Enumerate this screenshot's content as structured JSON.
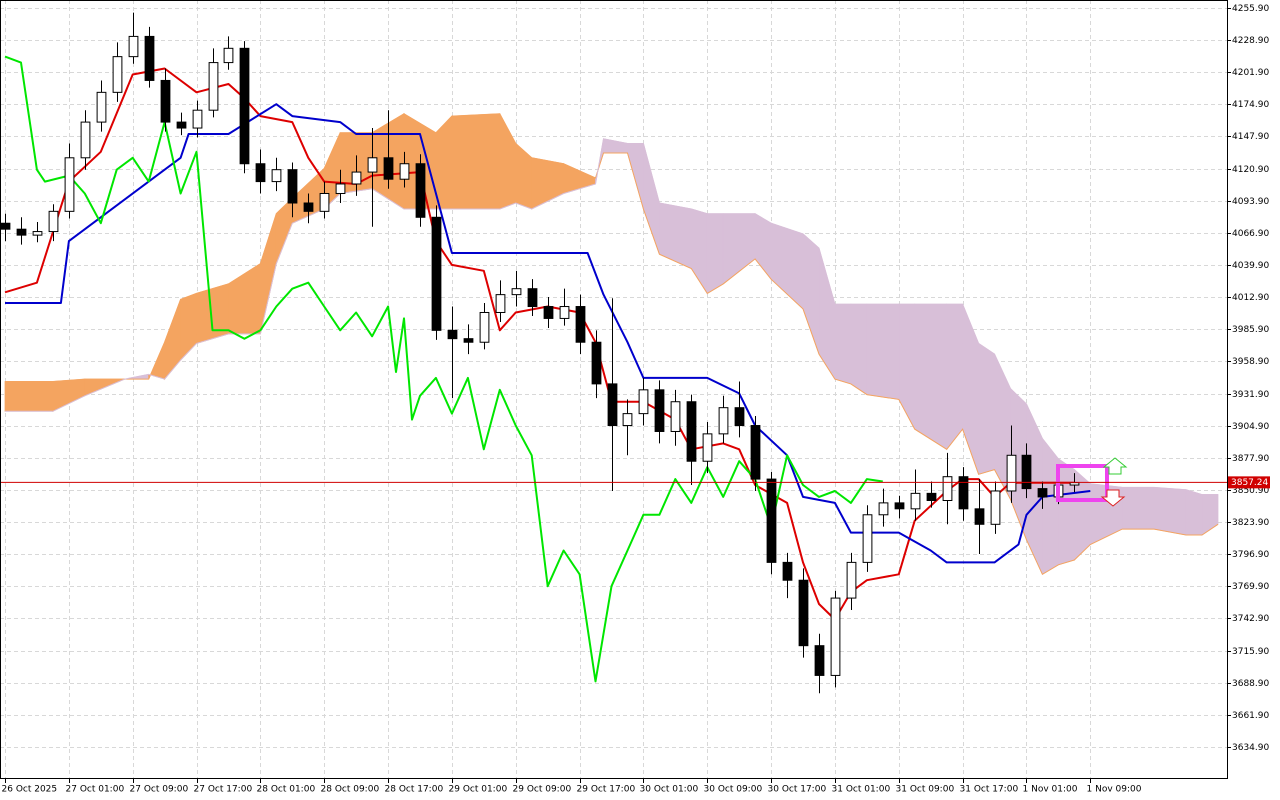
{
  "chart_data": {
    "type": "candlestick",
    "xlim": [
      -0.63,
      153.13
    ],
    "ylim": [
      3608.8,
      4262.6
    ],
    "grid": true,
    "yticks": [
      {
        "value": 4255.9,
        "label": "4255.90"
      },
      {
        "value": 4228.9,
        "label": "4228.90"
      },
      {
        "value": 4201.9,
        "label": "4201.90"
      },
      {
        "value": 4174.9,
        "label": "4174.90"
      },
      {
        "value": 4147.9,
        "label": "4147.90"
      },
      {
        "value": 4120.9,
        "label": "4120.90"
      },
      {
        "value": 4093.9,
        "label": "4093.90"
      },
      {
        "value": 4066.9,
        "label": "4066.90"
      },
      {
        "value": 4039.9,
        "label": "4039.90"
      },
      {
        "value": 4012.9,
        "label": "4012.90"
      },
      {
        "value": 3985.9,
        "label": "3985.90"
      },
      {
        "value": 3958.9,
        "label": "3958.90"
      },
      {
        "value": 3931.9,
        "label": "3931.90"
      },
      {
        "value": 3904.9,
        "label": "3904.90"
      },
      {
        "value": 3877.9,
        "label": "3877.90"
      },
      {
        "value": 3850.9,
        "label": "3850.90"
      },
      {
        "value": 3823.9,
        "label": "3823.90"
      },
      {
        "value": 3796.9,
        "label": "3796.90"
      },
      {
        "value": 3769.9,
        "label": "3769.90"
      },
      {
        "value": 3742.9,
        "label": "3742.90"
      },
      {
        "value": 3715.9,
        "label": "3715.90"
      },
      {
        "value": 3688.9,
        "label": "3688.90"
      },
      {
        "value": 3661.9,
        "label": "3661.90"
      },
      {
        "value": 3634.9,
        "label": "3634.90"
      }
    ],
    "xticks": [
      {
        "value": 0,
        "label": "26 Oct 2025"
      },
      {
        "value": 8,
        "label": "27 Oct 01:00"
      },
      {
        "value": 16,
        "label": "27 Oct 09:00"
      },
      {
        "value": 24,
        "label": "27 Oct 17:00"
      },
      {
        "value": 32,
        "label": "28 Oct 01:00"
      },
      {
        "value": 40,
        "label": "28 Oct 09:00"
      },
      {
        "value": 48,
        "label": "28 Oct 17:00"
      },
      {
        "value": 56,
        "label": "29 Oct 01:00"
      },
      {
        "value": 64,
        "label": "29 Oct 09:00"
      },
      {
        "value": 72,
        "label": "29 Oct 17:00"
      },
      {
        "value": 80,
        "label": "30 Oct 01:00"
      },
      {
        "value": 88,
        "label": "30 Oct 09:00"
      },
      {
        "value": 96,
        "label": "30 Oct 17:00"
      },
      {
        "value": 104,
        "label": "31 Oct 01:00"
      },
      {
        "value": 112,
        "label": "31 Oct 09:00"
      },
      {
        "value": 120,
        "label": "31 Oct 17:00"
      },
      {
        "value": 128,
        "label": "1 Nov 01:00"
      },
      {
        "value": 136,
        "label": "1 Nov 09:00"
      }
    ],
    "candles": {
      "x": [
        0,
        2,
        4,
        6,
        8,
        10,
        12,
        14,
        16,
        18,
        20,
        22,
        24,
        26,
        28,
        30,
        32,
        34,
        36,
        38,
        40,
        42,
        44,
        46,
        48,
        50,
        52,
        54,
        56,
        58,
        60,
        62,
        64,
        66,
        68,
        70,
        72,
        74,
        76,
        78,
        80,
        82,
        84,
        86,
        88,
        90,
        92,
        94,
        96,
        98,
        100,
        102,
        104,
        106,
        108,
        110,
        112,
        114,
        116,
        118,
        120,
        122,
        124,
        126,
        128,
        130,
        132,
        134
      ],
      "open": [
        4075,
        4070,
        4065,
        4068,
        4085,
        4130,
        4160,
        4185,
        4215,
        4232,
        4195,
        4160,
        4155,
        4170,
        4210,
        4222,
        4125,
        4110,
        4120,
        4092,
        4085,
        4100,
        4108,
        4118,
        4130,
        4112,
        4125,
        4080,
        3985,
        3978,
        3975,
        4000,
        4015,
        4020,
        4005,
        3995,
        4005,
        3975,
        3940,
        3905,
        3915,
        3935,
        3900,
        3925,
        3875,
        3898,
        3920,
        3905,
        3860,
        3790,
        3775,
        3720,
        3695,
        3760,
        3790,
        3830,
        3840,
        3835,
        3848,
        3842,
        3862,
        3835,
        3822,
        3850,
        3880,
        3852,
        3845,
        3855
      ],
      "high": [
        4083,
        4080,
        4076,
        4091,
        4142,
        4170,
        4195,
        4227,
        4252,
        4240,
        4205,
        4168,
        4178,
        4222,
        4232,
        4228,
        4137,
        4130,
        4126,
        4100,
        4110,
        4120,
        4132,
        4155,
        4170,
        4135,
        4133,
        4090,
        4005,
        3990,
        4008,
        4027,
        4035,
        4028,
        4013,
        4020,
        4015,
        3985,
        4012,
        3927,
        3945,
        3943,
        3935,
        3931,
        3908,
        3930,
        3942,
        3913,
        3866,
        3798,
        3785,
        3730,
        3766,
        3798,
        3838,
        3852,
        3846,
        3868,
        3858,
        3882,
        3870,
        3860,
        3858,
        3905,
        3890,
        3858,
        3865,
        3865
      ],
      "low": [
        4060,
        4057,
        4059,
        4060,
        4079,
        4120,
        4152,
        4177,
        4209,
        4189,
        4152,
        4149,
        4147,
        4164,
        4204,
        4117,
        4100,
        4102,
        4080,
        4075,
        4079,
        4092,
        4098,
        4072,
        4104,
        4105,
        4072,
        3977,
        3928,
        3965,
        3969,
        3992,
        4005,
        3997,
        3987,
        3989,
        3965,
        3928,
        3850,
        3880,
        3905,
        3890,
        3888,
        3855,
        3865,
        3890,
        3895,
        3850,
        3780,
        3760,
        3710,
        3680,
        3685,
        3750,
        3782,
        3820,
        3827,
        3825,
        3836,
        3822,
        3825,
        3797,
        3814,
        3840,
        3844,
        3835,
        3839,
        3849
      ],
      "close": [
        4070,
        4065,
        4068,
        4085,
        4130,
        4160,
        4185,
        4215,
        4232,
        4195,
        4160,
        4155,
        4170,
        4210,
        4222,
        4125,
        4110,
        4120,
        4092,
        4085,
        4100,
        4108,
        4118,
        4130,
        4112,
        4125,
        4080,
        3985,
        3978,
        3975,
        4000,
        4015,
        4020,
        4005,
        3995,
        4005,
        3975,
        3940,
        3905,
        3915,
        3935,
        3900,
        3925,
        3875,
        3898,
        3920,
        3905,
        3860,
        3790,
        3775,
        3720,
        3695,
        3760,
        3790,
        3830,
        3840,
        3835,
        3848,
        3842,
        3862,
        3835,
        3822,
        3850,
        3880,
        3852,
        3845,
        3855,
        3857
      ],
      "up_color": "#ffffff",
      "down_color": "#000000"
    },
    "cloud": {
      "x": [
        0,
        6,
        10,
        15,
        18,
        20,
        22,
        24,
        28,
        32,
        34,
        36,
        40,
        42,
        46,
        50,
        54,
        56,
        62,
        64,
        66,
        70,
        74,
        75,
        78,
        80,
        82,
        86,
        88,
        90,
        94,
        96,
        100,
        102,
        104,
        106,
        108,
        112,
        114,
        118,
        120,
        122,
        124,
        126,
        128,
        130,
        132,
        134,
        136,
        140,
        144,
        148,
        150,
        152
      ],
      "span_a": [
        3942,
        3942,
        3944,
        3944,
        3944,
        3975,
        4011,
        4016,
        4024,
        4041,
        4083,
        4096,
        4121,
        4151,
        4151,
        4167,
        4151,
        4165,
        4167,
        4142,
        4130,
        4125,
        4113,
        4134,
        4134,
        4087,
        4049,
        4037,
        4016,
        4024,
        4045,
        4028,
        4003,
        3965,
        3944,
        3940,
        3931,
        3927,
        3902,
        3885,
        3902,
        3864,
        3868,
        3843,
        3809,
        3780,
        3788,
        3792,
        3805,
        3818,
        3818,
        3813,
        3813,
        3822
      ],
      "span_b": [
        3917,
        3917,
        3930,
        3944,
        3948,
        3944,
        3960,
        3974,
        3982,
        3982,
        4041,
        4075,
        4087,
        4100,
        4104,
        4087,
        4087,
        4087,
        4087,
        4092,
        4087,
        4100,
        4108,
        4146,
        4142,
        4142,
        4092,
        4087,
        4083,
        4083,
        4083,
        4075,
        4066,
        4054,
        4007,
        4007,
        4007,
        4007,
        4007,
        4007,
        4007,
        3974,
        3965,
        3936,
        3923,
        3894,
        3877,
        3868,
        3856,
        3853,
        3853,
        3851,
        3847,
        3847
      ],
      "up_color": "#f4a460",
      "down_color": "#d8bfd8"
    },
    "lines": [
      {
        "color": "#dd0000",
        "x": [
          0,
          4,
          8,
          12,
          16,
          20,
          24,
          28,
          30,
          32,
          36,
          38,
          40,
          44,
          46,
          52,
          54,
          56,
          60,
          62,
          64,
          68,
          72,
          74,
          76,
          80,
          84,
          86,
          90,
          92,
          94,
          98,
          100,
          102,
          104,
          106,
          108,
          112,
          114,
          118,
          120,
          122,
          124,
          126,
          134
        ],
        "values": [
          4017,
          4025,
          4110,
          4135,
          4200,
          4205,
          4185,
          4192,
          4180,
          4165,
          4160,
          4130,
          4110,
          4108,
          4115,
          4118,
          4060,
          4040,
          4035,
          3985,
          4000,
          4005,
          4000,
          3975,
          3925,
          3925,
          3910,
          3885,
          3890,
          3885,
          3855,
          3840,
          3790,
          3755,
          3742,
          3765,
          3775,
          3780,
          3825,
          3850,
          3860,
          3860,
          3845,
          3857,
          3857
        ]
      },
      {
        "color": "#0000cc",
        "x": [
          0,
          7,
          8,
          14,
          20,
          22,
          23,
          28,
          34,
          36,
          42,
          44,
          52,
          56,
          73,
          75,
          78,
          80,
          88,
          92,
          94,
          98,
          100,
          104,
          106,
          112,
          116,
          118,
          124,
          127,
          128,
          130,
          136
        ],
        "values": [
          4008,
          4008,
          4060,
          4090,
          4120,
          4130,
          4150,
          4150,
          4175,
          4165,
          4160,
          4150,
          4150,
          4050,
          4050,
          4015,
          3975,
          3945,
          3945,
          3932,
          3905,
          3880,
          3845,
          3840,
          3815,
          3815,
          3800,
          3790,
          3790,
          3805,
          3830,
          3845,
          3850
        ]
      },
      {
        "color": "#00e600",
        "x": [
          0,
          2,
          4,
          5,
          8,
          10,
          12,
          14,
          16,
          18,
          20,
          22,
          24,
          26,
          28,
          30,
          32,
          34,
          36,
          38,
          40,
          42,
          44,
          46,
          48,
          49,
          50,
          51,
          52,
          54,
          56,
          58,
          60,
          62,
          64,
          66,
          68,
          70,
          72,
          74,
          76,
          78,
          80,
          82,
          84,
          86,
          88,
          90,
          92,
          94,
          96,
          98,
          100,
          102,
          104,
          106,
          108,
          110
        ],
        "values": [
          4215,
          4210,
          4120,
          4110,
          4115,
          4100,
          4075,
          4120,
          4130,
          4110,
          4160,
          4100,
          4135,
          3985,
          3985,
          3978,
          3985,
          4005,
          4020,
          4025,
          4005,
          3985,
          4000,
          3980,
          4005,
          3950,
          3995,
          3910,
          3930,
          3945,
          3915,
          3945,
          3885,
          3935,
          3905,
          3880,
          3770,
          3800,
          3780,
          3690,
          3770,
          3800,
          3830,
          3830,
          3860,
          3840,
          3870,
          3845,
          3875,
          3860,
          3820,
          3880,
          3855,
          3845,
          3850,
          3840,
          3860,
          3858
        ]
      }
    ],
    "current_price": 3857.24,
    "current_price_color": "#d00000"
  }
}
